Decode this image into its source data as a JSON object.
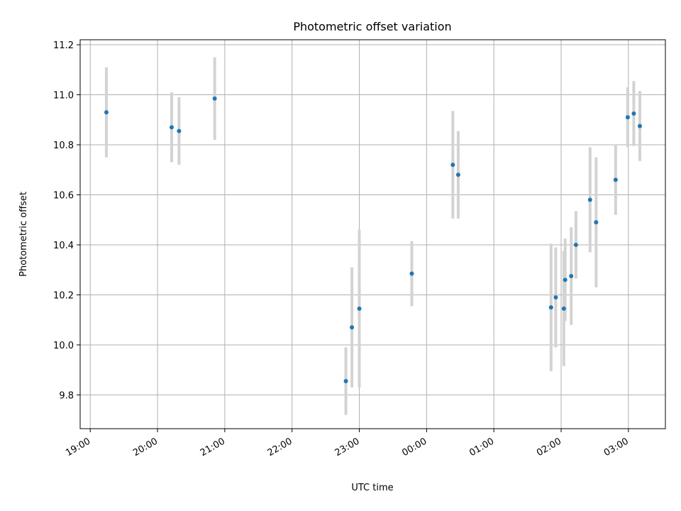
{
  "chart_data": {
    "type": "scatter",
    "title": "Photometric offset variation",
    "xlabel": "UTC time",
    "ylabel": "Photometric offset",
    "x_unit": "hours since 19:00 UTC",
    "xlim": [
      -0.15,
      8.55
    ],
    "ylim": [
      9.665,
      11.22
    ],
    "grid": true,
    "x_ticks": [
      {
        "value": 0,
        "label": "19:00"
      },
      {
        "value": 1,
        "label": "20:00"
      },
      {
        "value": 2,
        "label": "21:00"
      },
      {
        "value": 3,
        "label": "22:00"
      },
      {
        "value": 4,
        "label": "23:00"
      },
      {
        "value": 5,
        "label": "00:00"
      },
      {
        "value": 6,
        "label": "01:00"
      },
      {
        "value": 7,
        "label": "02:00"
      },
      {
        "value": 8,
        "label": "03:00"
      }
    ],
    "y_ticks": [
      {
        "value": 9.8,
        "label": "9.8"
      },
      {
        "value": 10.0,
        "label": "10.0"
      },
      {
        "value": 10.2,
        "label": "10.2"
      },
      {
        "value": 10.4,
        "label": "10.4"
      },
      {
        "value": 10.6,
        "label": "10.6"
      },
      {
        "value": 10.8,
        "label": "10.8"
      },
      {
        "value": 11.0,
        "label": "11.0"
      },
      {
        "value": 11.2,
        "label": "11.2"
      }
    ],
    "colors": {
      "point": "#1f77b4",
      "errorbar": "#d3d3d3"
    },
    "points": [
      {
        "time": "19:14",
        "x": 0.24,
        "y": 10.93,
        "err": 0.18
      },
      {
        "time": "20:12",
        "x": 1.21,
        "y": 10.87,
        "err": 0.14
      },
      {
        "time": "20:19",
        "x": 1.32,
        "y": 10.855,
        "err": 0.135
      },
      {
        "time": "20:51",
        "x": 1.85,
        "y": 10.985,
        "err": 0.165
      },
      {
        "time": "22:48",
        "x": 3.8,
        "y": 9.855,
        "err": 0.135
      },
      {
        "time": "22:53",
        "x": 3.89,
        "y": 10.07,
        "err": 0.24
      },
      {
        "time": "22:59",
        "x": 4.0,
        "y": 10.145,
        "err": 0.315
      },
      {
        "time": "23:46",
        "x": 4.78,
        "y": 10.285,
        "err": 0.13
      },
      {
        "time": "00:23",
        "x": 5.39,
        "y": 10.72,
        "err": 0.215
      },
      {
        "time": "00:28",
        "x": 5.47,
        "y": 10.68,
        "err": 0.175
      },
      {
        "time": "01:51",
        "x": 6.85,
        "y": 10.15,
        "err": 0.255
      },
      {
        "time": "01:55",
        "x": 6.92,
        "y": 10.19,
        "err": 0.2
      },
      {
        "time": "02:02",
        "x": 7.04,
        "y": 10.145,
        "err": 0.23
      },
      {
        "time": "02:04",
        "x": 7.06,
        "y": 10.26,
        "err": 0.165
      },
      {
        "time": "02:09",
        "x": 7.15,
        "y": 10.275,
        "err": 0.195
      },
      {
        "time": "02:13",
        "x": 7.22,
        "y": 10.4,
        "err": 0.135
      },
      {
        "time": "02:25",
        "x": 7.43,
        "y": 10.58,
        "err": 0.21
      },
      {
        "time": "02:31",
        "x": 7.52,
        "y": 10.49,
        "err": 0.26
      },
      {
        "time": "02:49",
        "x": 7.81,
        "y": 10.66,
        "err": 0.14
      },
      {
        "time": "02:59",
        "x": 7.99,
        "y": 10.91,
        "err": 0.12
      },
      {
        "time": "03:05",
        "x": 8.08,
        "y": 10.925,
        "err": 0.13
      },
      {
        "time": "03:10",
        "x": 8.17,
        "y": 10.875,
        "err": 0.14
      }
    ]
  }
}
